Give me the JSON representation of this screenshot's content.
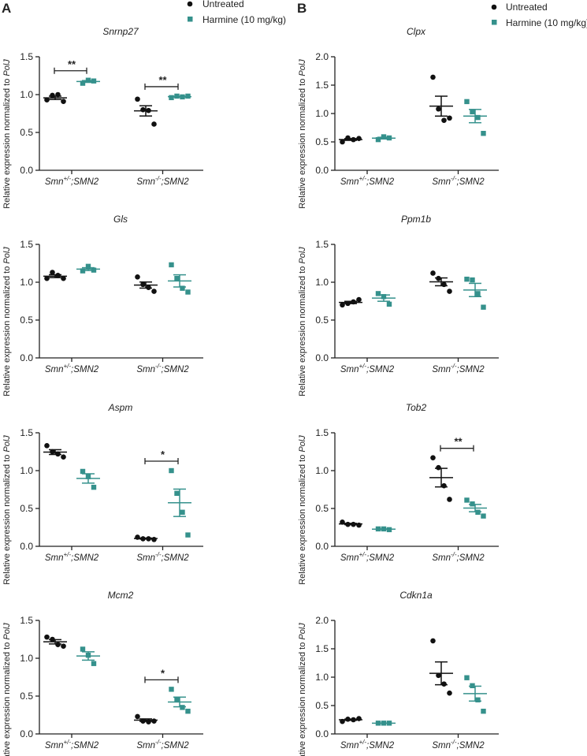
{
  "legend": {
    "untreated": "Untreated",
    "harmine": "Harmine (10 mg/kg)",
    "colors": {
      "untreated": "#111111",
      "harmine": "#35918c"
    }
  },
  "panel_letters": [
    "A",
    "B"
  ],
  "ylabel_prefix": "Relative expression normalized to ",
  "ylabel_gene": "PolJ",
  "chart_data": [
    {
      "type": "scatter",
      "panel": "A",
      "title": "Snrnp27",
      "ylim": [
        0,
        1.5
      ],
      "yticks": [
        "0.0",
        "0.5",
        "1.0",
        "1.5"
      ],
      "groups": [
        {
          "label": {
            "base": "Smn",
            "sup": "+/-",
            "rest": ";SMN2"
          },
          "untreated": [
            0.93,
            0.99,
            1.0,
            0.91
          ],
          "harmine": [
            1.15,
            1.19,
            1.18
          ],
          "sig": "**"
        },
        {
          "label": {
            "base": "Smn",
            "sup": "-/-",
            "rest": ";SMN2"
          },
          "untreated": [
            0.94,
            0.8,
            0.79,
            0.61
          ],
          "harmine": [
            0.96,
            0.98,
            0.97,
            0.98
          ],
          "sig": "**"
        }
      ]
    },
    {
      "type": "scatter",
      "panel": "A",
      "title": "Gls",
      "ylim": [
        0,
        1.5
      ],
      "yticks": [
        "0.0",
        "0.5",
        "1.0",
        "1.5"
      ],
      "groups": [
        {
          "label": {
            "base": "Smn",
            "sup": "+/-",
            "rest": ";SMN2"
          },
          "untreated": [
            1.05,
            1.13,
            1.09,
            1.05
          ],
          "harmine": [
            1.15,
            1.21,
            1.16
          ],
          "sig": ""
        },
        {
          "label": {
            "base": "Smn",
            "sup": "-/-",
            "rest": ";SMN2"
          },
          "untreated": [
            1.07,
            0.97,
            0.93,
            0.88
          ],
          "harmine": [
            1.23,
            1.05,
            0.92,
            0.87
          ],
          "sig": ""
        }
      ]
    },
    {
      "type": "scatter",
      "panel": "A",
      "title": "Aspm",
      "ylim": [
        0,
        1.5
      ],
      "yticks": [
        "0.0",
        "0.5",
        "1.0",
        "1.5"
      ],
      "groups": [
        {
          "label": {
            "base": "Smn",
            "sup": "+/-",
            "rest": ";SMN2"
          },
          "untreated": [
            1.33,
            1.25,
            1.22,
            1.18
          ],
          "harmine": [
            0.99,
            0.92,
            0.78
          ],
          "sig": ""
        },
        {
          "label": {
            "base": "Smn",
            "sup": "-/-",
            "rest": ";SMN2"
          },
          "untreated": [
            0.12,
            0.1,
            0.1,
            0.09
          ],
          "harmine": [
            1.0,
            0.7,
            0.45,
            0.15
          ],
          "sig": "*"
        }
      ]
    },
    {
      "type": "scatter",
      "panel": "A",
      "title": "Mcm2",
      "ylim": [
        0,
        1.5
      ],
      "yticks": [
        "0.0",
        "0.5",
        "1.0",
        "1.5"
      ],
      "groups": [
        {
          "label": {
            "base": "Smn",
            "sup": "+/-",
            "rest": ";SMN2"
          },
          "untreated": [
            1.28,
            1.25,
            1.18,
            1.16
          ],
          "harmine": [
            1.12,
            1.04,
            0.93
          ],
          "sig": ""
        },
        {
          "label": {
            "base": "Smn",
            "sup": "-/-",
            "rest": ";SMN2"
          },
          "untreated": [
            0.23,
            0.17,
            0.16,
            0.17
          ],
          "harmine": [
            0.59,
            0.45,
            0.35,
            0.3
          ],
          "sig": "*"
        }
      ]
    },
    {
      "type": "scatter",
      "panel": "B",
      "title": "Clpx",
      "ylim": [
        0,
        2.0
      ],
      "yticks": [
        "0.0",
        "0.5",
        "1.0",
        "1.5",
        "2.0"
      ],
      "groups": [
        {
          "label": {
            "base": "Smn",
            "sup": "+/-",
            "rest": ";SMN2"
          },
          "untreated": [
            0.5,
            0.57,
            0.54,
            0.56
          ],
          "harmine": [
            0.54,
            0.59,
            0.57
          ],
          "sig": ""
        },
        {
          "label": {
            "base": "Smn",
            "sup": "-/-",
            "rest": ";SMN2"
          },
          "untreated": [
            1.64,
            1.08,
            0.88,
            0.92
          ],
          "harmine": [
            1.21,
            1.03,
            0.93,
            0.65
          ],
          "sig": ""
        }
      ]
    },
    {
      "type": "scatter",
      "panel": "B",
      "title": "Ppm1b",
      "ylim": [
        0,
        1.5
      ],
      "yticks": [
        "0.0",
        "0.5",
        "1.0",
        "1.5"
      ],
      "groups": [
        {
          "label": {
            "base": "Smn",
            "sup": "+/-",
            "rest": ";SMN2"
          },
          "untreated": [
            0.7,
            0.72,
            0.74,
            0.77
          ],
          "harmine": [
            0.85,
            0.81,
            0.71
          ],
          "sig": ""
        },
        {
          "label": {
            "base": "Smn",
            "sup": "-/-",
            "rest": ";SMN2"
          },
          "untreated": [
            1.12,
            1.05,
            0.97,
            0.88
          ],
          "harmine": [
            1.04,
            1.03,
            0.85,
            0.67
          ],
          "sig": ""
        }
      ]
    },
    {
      "type": "scatter",
      "panel": "B",
      "title": "Tob2",
      "ylim": [
        0,
        1.5
      ],
      "yticks": [
        "0.0",
        "0.5",
        "1.0",
        "1.5"
      ],
      "groups": [
        {
          "label": {
            "base": "Smn",
            "sup": "+/-",
            "rest": ";SMN2"
          },
          "untreated": [
            0.32,
            0.29,
            0.29,
            0.28
          ],
          "harmine": [
            0.23,
            0.23,
            0.22
          ],
          "sig": ""
        },
        {
          "label": {
            "base": "Smn",
            "sup": "-/-",
            "rest": ";SMN2"
          },
          "untreated": [
            1.17,
            1.04,
            0.8,
            0.62
          ],
          "harmine": [
            0.61,
            0.56,
            0.45,
            0.4
          ],
          "sig": "**"
        }
      ]
    },
    {
      "type": "scatter",
      "panel": "B",
      "title": "Cdkn1a",
      "ylim": [
        0,
        2.0
      ],
      "yticks": [
        "0.0",
        "0.5",
        "1.0",
        "1.5",
        "2.0"
      ],
      "groups": [
        {
          "label": {
            "base": "Smn",
            "sup": "+/-",
            "rest": ";SMN2"
          },
          "untreated": [
            0.22,
            0.26,
            0.25,
            0.27
          ],
          "harmine": [
            0.19,
            0.19,
            0.19
          ],
          "sig": ""
        },
        {
          "label": {
            "base": "Smn",
            "sup": "-/-",
            "rest": ";SMN2"
          },
          "untreated": [
            1.64,
            1.03,
            0.88,
            0.72
          ],
          "harmine": [
            0.99,
            0.85,
            0.6,
            0.4
          ],
          "sig": ""
        }
      ]
    }
  ]
}
